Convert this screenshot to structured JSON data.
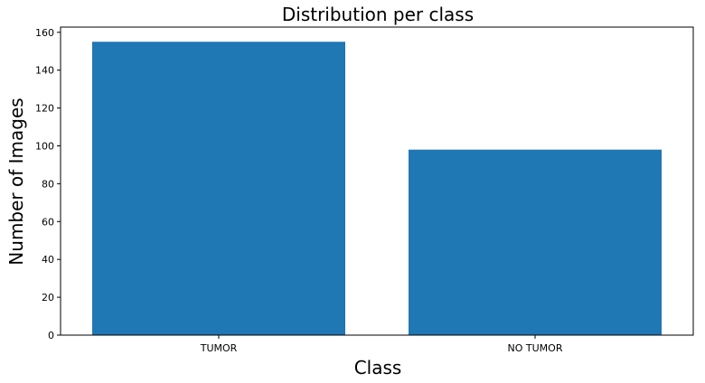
{
  "chart_data": {
    "type": "bar",
    "title": "Distribution per class",
    "xlabel": "Class",
    "ylabel": "Number of Images",
    "categories": [
      "TUMOR",
      "NO TUMOR"
    ],
    "values": [
      155,
      98
    ],
    "ylim": [
      0,
      162.75
    ],
    "yticks": [
      "0",
      "20",
      "40",
      "60",
      "80",
      "100",
      "120",
      "140",
      "160"
    ],
    "bar_color": "#1f77b4",
    "grid": false,
    "legend": "none"
  }
}
